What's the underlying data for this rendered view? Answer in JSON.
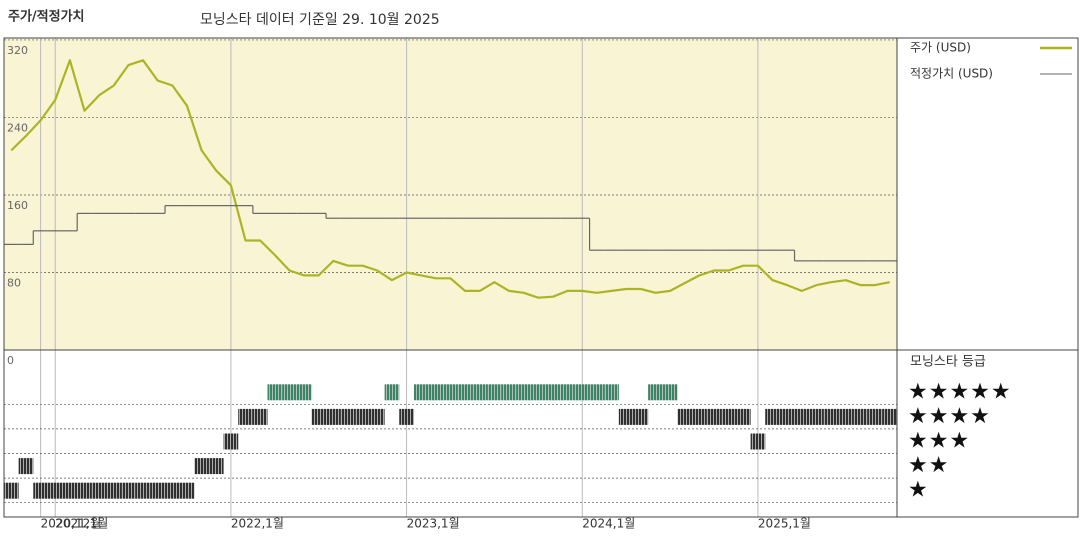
{
  "title": "주가/적정가치",
  "subtitle": "모닝스타 데이터 기준일 29. 10월 2025",
  "chart_data": [
    {
      "type": "line",
      "grid": true,
      "background": "#f8f4d4",
      "x": [
        "2020-10",
        "2020-11",
        "2020-12",
        "2021-01",
        "2021-02",
        "2021-03",
        "2021-04",
        "2021-05",
        "2021-06",
        "2021-07",
        "2021-08",
        "2021-09",
        "2021-10",
        "2021-11",
        "2021-12",
        "2022-01",
        "2022-02",
        "2022-03",
        "2022-04",
        "2022-05",
        "2022-06",
        "2022-07",
        "2022-08",
        "2022-09",
        "2022-10",
        "2022-11",
        "2022-12",
        "2023-01",
        "2023-02",
        "2023-03",
        "2023-04",
        "2023-05",
        "2023-06",
        "2023-07",
        "2023-08",
        "2023-09",
        "2023-10",
        "2023-11",
        "2023-12",
        "2024-01",
        "2024-02",
        "2024-03",
        "2024-04",
        "2024-05",
        "2024-06",
        "2024-07",
        "2024-08",
        "2024-09",
        "2024-10",
        "2024-11",
        "2024-12",
        "2025-01",
        "2025-02",
        "2025-03",
        "2025-04",
        "2025-05",
        "2025-06",
        "2025-07",
        "2025-08",
        "2025-09",
        "2025-10"
      ],
      "xticks": [
        {
          "value": "2020-12",
          "label": "2020,12월"
        },
        {
          "value": "2021-01",
          "label": "2021,1월"
        },
        {
          "value": "2022-01",
          "label": "2022,1월"
        },
        {
          "value": "2023-01",
          "label": "2023,1월"
        },
        {
          "value": "2024-01",
          "label": "2024,1월"
        },
        {
          "value": "2025-01",
          "label": "2025,1월"
        }
      ],
      "ylim": [
        0,
        322
      ],
      "yticks": [
        0,
        80,
        160,
        240,
        320
      ],
      "series": [
        {
          "name": "주가 (USD)",
          "color": "#adb424",
          "style": "line",
          "values": [
            206,
            221,
            237,
            258,
            299,
            247,
            263,
            273,
            294,
            299,
            278,
            273,
            252,
            206,
            185,
            170,
            113,
            113,
            98,
            82,
            77,
            77,
            92,
            87,
            87,
            82,
            72,
            80,
            77,
            74,
            74,
            61,
            61,
            70,
            61,
            59,
            54,
            55,
            61,
            61,
            59,
            61,
            63,
            63,
            59,
            61,
            69,
            77,
            82,
            82,
            87,
            87,
            72,
            67,
            61,
            67,
            70,
            72,
            67,
            67,
            70
          ]
        },
        {
          "name": "적정가치 (USD)",
          "color": "#666666",
          "style": "step",
          "values": [
            109,
            109,
            123,
            123,
            123,
            141,
            141,
            141,
            141,
            141,
            141,
            149,
            149,
            149,
            149,
            149,
            149,
            141,
            141,
            141,
            141,
            141,
            136,
            136,
            136,
            136,
            136,
            136,
            136,
            136,
            136,
            136,
            136,
            136,
            136,
            136,
            136,
            136,
            136,
            136,
            103,
            103,
            103,
            103,
            103,
            103,
            103,
            103,
            103,
            103,
            103,
            103,
            103,
            103,
            92,
            92,
            92,
            92,
            92,
            92,
            92
          ]
        }
      ]
    },
    {
      "type": "rating",
      "title": "모닝스타 등급",
      "color": "#2f2f2f",
      "top_color": "#3b8566",
      "x": [
        "2020-10",
        "2020-11",
        "2020-12",
        "2021-01",
        "2021-02",
        "2021-03",
        "2021-04",
        "2021-05",
        "2021-06",
        "2021-07",
        "2021-08",
        "2021-09",
        "2021-10",
        "2021-11",
        "2021-12",
        "2022-01",
        "2022-02",
        "2022-03",
        "2022-04",
        "2022-05",
        "2022-06",
        "2022-07",
        "2022-08",
        "2022-09",
        "2022-10",
        "2022-11",
        "2022-12",
        "2023-01",
        "2023-02",
        "2023-03",
        "2023-04",
        "2023-05",
        "2023-06",
        "2023-07",
        "2023-08",
        "2023-09",
        "2023-10",
        "2023-11",
        "2023-12",
        "2024-01",
        "2024-02",
        "2024-03",
        "2024-04",
        "2024-05",
        "2024-06",
        "2024-07",
        "2024-08",
        "2024-09",
        "2024-10",
        "2024-11",
        "2024-12",
        "2025-01",
        "2025-02",
        "2025-03",
        "2025-04",
        "2025-05",
        "2025-06",
        "2025-07",
        "2025-08",
        "2025-09",
        "2025-10"
      ],
      "ylim": [
        0.5,
        5.5
      ],
      "yticks": [
        {
          "value": 5,
          "label": "★★★★★"
        },
        {
          "value": 4,
          "label": "★★★★"
        },
        {
          "value": 3,
          "label": "★★★"
        },
        {
          "value": 2,
          "label": "★★"
        },
        {
          "value": 1,
          "label": "★"
        }
      ],
      "values": [
        1,
        2,
        1,
        1,
        1,
        1,
        1,
        1,
        1,
        1,
        1,
        1,
        1,
        2,
        2,
        3,
        4,
        4,
        5,
        5,
        5,
        4,
        4,
        4,
        4,
        4,
        5,
        4,
        5,
        5,
        5,
        5,
        5,
        5,
        5,
        5,
        5,
        5,
        5,
        5,
        5,
        5,
        4,
        4,
        5,
        5,
        4,
        4,
        4,
        4,
        4,
        3,
        4,
        4,
        4,
        4,
        4,
        4,
        4,
        4,
        4
      ]
    }
  ]
}
